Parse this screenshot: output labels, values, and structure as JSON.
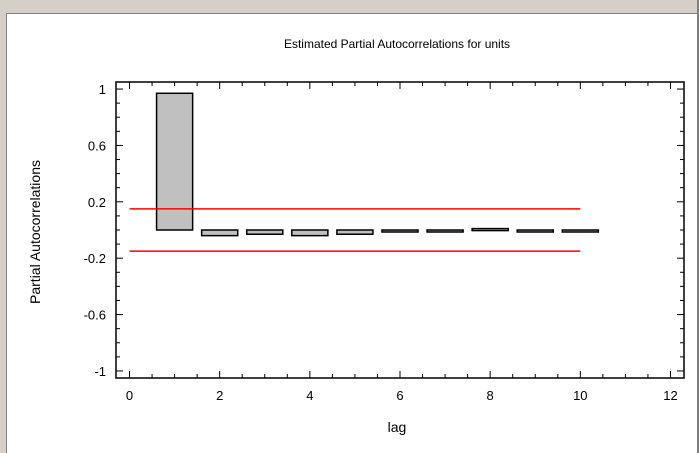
{
  "chart_data": {
    "type": "bar",
    "title": "Estimated Partial Autocorrelations for units",
    "xlabel": "lag",
    "ylabel": "Partial Autocorrelations",
    "xlim": [
      -0.3,
      12.3
    ],
    "ylim": [
      -1.05,
      1.05
    ],
    "x_ticks": [
      0,
      2,
      4,
      6,
      8,
      10,
      12
    ],
    "y_ticks": [
      1,
      0.6,
      0.2,
      -0.2,
      -0.6,
      -1
    ],
    "y_tick_labels": [
      "1",
      "0.6",
      "0.2",
      "-0.2",
      "-0.6",
      "-1"
    ],
    "grid": false,
    "bars": [
      {
        "lag": 1,
        "value": 0.97
      },
      {
        "lag": 2,
        "value": -0.04
      },
      {
        "lag": 3,
        "value": -0.03
      },
      {
        "lag": 4,
        "value": -0.04
      },
      {
        "lag": 5,
        "value": -0.03
      },
      {
        "lag": 6,
        "value": 0.0
      },
      {
        "lag": 7,
        "value": -0.01
      },
      {
        "lag": 8,
        "value": 0.01
      },
      {
        "lag": 9,
        "value": -0.005
      },
      {
        "lag": 10,
        "value": -0.005
      }
    ],
    "confidence_limits": {
      "upper": 0.15,
      "lower": -0.15,
      "color": "#ff0000",
      "x_range": [
        0,
        10
      ]
    },
    "bar_color": "#c0c0c0"
  }
}
